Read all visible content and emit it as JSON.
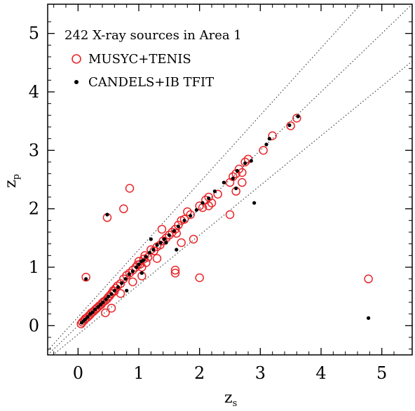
{
  "chart_data": {
    "type": "scatter",
    "title": "242 X-ray sources in Area 1",
    "xlabel": {
      "base": "z",
      "sub": "s"
    },
    "ylabel": {
      "base": "z",
      "sub": "p"
    },
    "xlim": [
      -0.5,
      5.5
    ],
    "ylim": [
      -0.5,
      5.5
    ],
    "xticks": [
      0,
      1,
      2,
      3,
      4,
      5
    ],
    "yticks": [
      0,
      1,
      2,
      3,
      4,
      5
    ],
    "grid": false,
    "legend_position": "top-left",
    "reference_lines": [
      {
        "type": "dotted",
        "slope": 1.15,
        "intercept": 0.15
      },
      {
        "type": "dotted",
        "slope": 1.0,
        "intercept": 0.0
      },
      {
        "type": "dotted",
        "slope": 0.85,
        "intercept": -0.15
      }
    ],
    "series": [
      {
        "name": "MUSYC+TENIS",
        "marker": "open-circle",
        "color": "#e8262a",
        "points": [
          [
            0.05,
            0.03
          ],
          [
            0.07,
            0.06
          ],
          [
            0.1,
            0.09
          ],
          [
            0.12,
            0.12
          ],
          [
            0.15,
            0.14
          ],
          [
            0.18,
            0.17
          ],
          [
            0.2,
            0.19
          ],
          [
            0.22,
            0.22
          ],
          [
            0.25,
            0.24
          ],
          [
            0.28,
            0.27
          ],
          [
            0.3,
            0.29
          ],
          [
            0.32,
            0.31
          ],
          [
            0.35,
            0.34
          ],
          [
            0.38,
            0.36
          ],
          [
            0.4,
            0.39
          ],
          [
            0.42,
            0.41
          ],
          [
            0.45,
            0.43
          ],
          [
            0.48,
            0.46
          ],
          [
            0.5,
            0.49
          ],
          [
            0.52,
            0.51
          ],
          [
            0.55,
            0.55
          ],
          [
            0.58,
            0.6
          ],
          [
            0.6,
            0.59
          ],
          [
            0.62,
            0.64
          ],
          [
            0.65,
            0.68
          ],
          [
            0.7,
            0.72
          ],
          [
            0.75,
            0.8
          ],
          [
            0.8,
            0.86
          ],
          [
            0.85,
            0.9
          ],
          [
            0.9,
            0.95
          ],
          [
            0.95,
            1.0
          ],
          [
            0.98,
            1.04
          ],
          [
            1.0,
            1.1
          ],
          [
            1.02,
            1.05
          ],
          [
            1.05,
            1.0
          ],
          [
            1.08,
            1.14
          ],
          [
            1.1,
            1.2
          ],
          [
            1.12,
            1.08
          ],
          [
            1.15,
            1.17
          ],
          [
            1.2,
            1.3
          ],
          [
            1.25,
            1.28
          ],
          [
            1.3,
            1.35
          ],
          [
            1.35,
            1.38
          ],
          [
            1.4,
            1.45
          ],
          [
            1.45,
            1.5
          ],
          [
            1.5,
            1.55
          ],
          [
            1.55,
            1.6
          ],
          [
            1.6,
            1.65
          ],
          [
            1.62,
            1.58
          ],
          [
            1.65,
            1.72
          ],
          [
            1.7,
            1.8
          ],
          [
            1.75,
            1.82
          ],
          [
            1.8,
            1.95
          ],
          [
            1.85,
            1.9
          ],
          [
            2.0,
            2.05
          ],
          [
            2.05,
            2.02
          ],
          [
            2.1,
            2.15
          ],
          [
            2.15,
            2.2
          ],
          [
            2.2,
            2.1
          ],
          [
            2.3,
            2.25
          ],
          [
            2.5,
            2.45
          ],
          [
            2.55,
            2.55
          ],
          [
            2.6,
            2.6
          ],
          [
            2.65,
            2.68
          ],
          [
            2.7,
            2.62
          ],
          [
            2.75,
            2.8
          ],
          [
            2.8,
            2.85
          ],
          [
            3.05,
            3.0
          ],
          [
            3.2,
            3.25
          ],
          [
            3.5,
            3.42
          ],
          [
            3.6,
            3.55
          ],
          [
            0.13,
            0.83
          ],
          [
            0.48,
            1.85
          ],
          [
            0.75,
            2.0
          ],
          [
            0.85,
            2.35
          ],
          [
            1.3,
            1.15
          ],
          [
            1.38,
            1.65
          ],
          [
            1.6,
            0.95
          ],
          [
            1.6,
            0.9
          ],
          [
            1.7,
            1.42
          ],
          [
            1.9,
            1.48
          ],
          [
            2.0,
            0.82
          ],
          [
            2.15,
            2.05
          ],
          [
            2.5,
            1.9
          ],
          [
            2.6,
            2.3
          ],
          [
            2.7,
            2.45
          ],
          [
            1.05,
            0.85
          ],
          [
            0.55,
            0.3
          ],
          [
            0.45,
            0.22
          ],
          [
            0.7,
            0.55
          ],
          [
            0.9,
            0.75
          ],
          [
            4.78,
            0.8
          ]
        ]
      },
      {
        "name": "CANDELS+IB TFIT",
        "marker": "filled-dot",
        "color": "#000000",
        "points": [
          [
            0.06,
            0.05
          ],
          [
            0.09,
            0.08
          ],
          [
            0.12,
            0.11
          ],
          [
            0.16,
            0.15
          ],
          [
            0.2,
            0.2
          ],
          [
            0.24,
            0.23
          ],
          [
            0.28,
            0.28
          ],
          [
            0.33,
            0.32
          ],
          [
            0.37,
            0.36
          ],
          [
            0.41,
            0.4
          ],
          [
            0.46,
            0.45
          ],
          [
            0.5,
            0.5
          ],
          [
            0.55,
            0.54
          ],
          [
            0.6,
            0.6
          ],
          [
            0.66,
            0.66
          ],
          [
            0.72,
            0.73
          ],
          [
            0.78,
            0.8
          ],
          [
            0.84,
            0.88
          ],
          [
            0.9,
            0.93
          ],
          [
            0.96,
            1.0
          ],
          [
            1.0,
            1.05
          ],
          [
            1.04,
            1.1
          ],
          [
            1.08,
            1.12
          ],
          [
            1.12,
            1.18
          ],
          [
            1.18,
            1.25
          ],
          [
            1.24,
            1.3
          ],
          [
            1.3,
            1.38
          ],
          [
            1.36,
            1.42
          ],
          [
            1.42,
            1.48
          ],
          [
            1.5,
            1.55
          ],
          [
            1.58,
            1.62
          ],
          [
            1.65,
            1.7
          ],
          [
            1.75,
            1.8
          ],
          [
            1.85,
            1.88
          ],
          [
            1.95,
            1.98
          ],
          [
            2.05,
            2.1
          ],
          [
            2.15,
            2.18
          ],
          [
            2.25,
            2.3
          ],
          [
            2.4,
            2.45
          ],
          [
            2.55,
            2.52
          ],
          [
            2.62,
            2.65
          ],
          [
            2.75,
            2.78
          ],
          [
            2.85,
            2.82
          ],
          [
            3.1,
            3.1
          ],
          [
            3.15,
            3.2
          ],
          [
            3.48,
            3.43
          ],
          [
            3.62,
            3.58
          ],
          [
            0.13,
            0.8
          ],
          [
            0.48,
            1.9
          ],
          [
            1.2,
            1.48
          ],
          [
            1.45,
            1.42
          ],
          [
            1.62,
            1.3
          ],
          [
            2.6,
            2.35
          ],
          [
            2.9,
            2.1
          ],
          [
            1.05,
            0.9
          ],
          [
            0.8,
            0.6
          ],
          [
            4.78,
            0.13
          ]
        ]
      }
    ]
  }
}
